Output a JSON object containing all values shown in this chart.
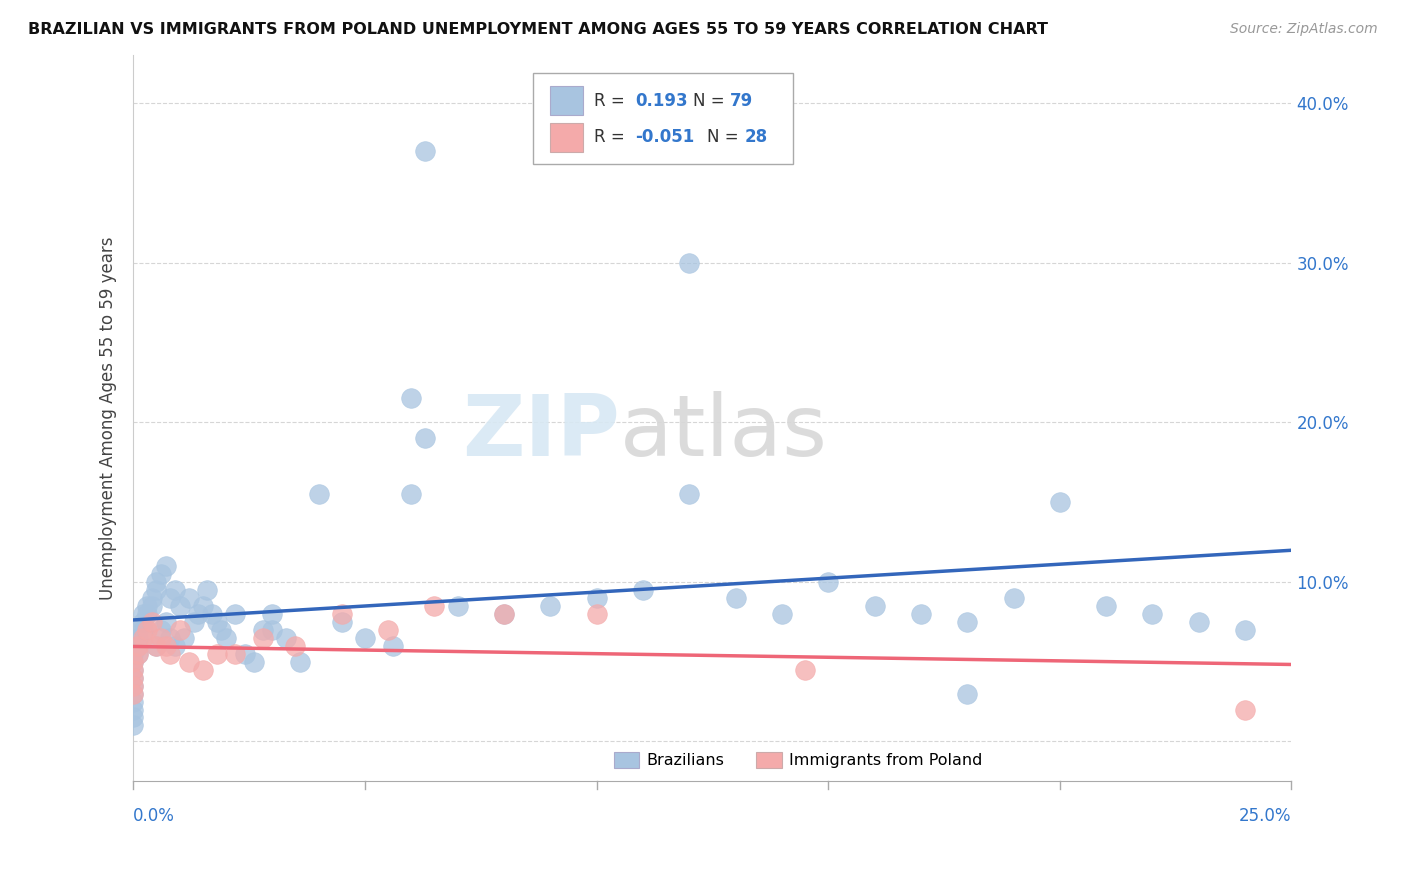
{
  "title": "BRAZILIAN VS IMMIGRANTS FROM POLAND UNEMPLOYMENT AMONG AGES 55 TO 59 YEARS CORRELATION CHART",
  "source": "Source: ZipAtlas.com",
  "ylabel": "Unemployment Among Ages 55 to 59 years",
  "xlim": [
    0.0,
    0.25
  ],
  "ylim": [
    -0.025,
    0.43
  ],
  "brazil_color": "#A8C4E0",
  "poland_color": "#F4AAAA",
  "brazil_line_color": "#3366BB",
  "poland_line_color": "#EE6677",
  "brazil_R": 0.193,
  "brazil_N": 79,
  "poland_R": -0.051,
  "poland_N": 28,
  "brazil_x": [
    0.0,
    0.0,
    0.0,
    0.0,
    0.0,
    0.0,
    0.0,
    0.0,
    0.0,
    0.0,
    0.001,
    0.001,
    0.001,
    0.001,
    0.002,
    0.002,
    0.002,
    0.003,
    0.003,
    0.004,
    0.004,
    0.005,
    0.005,
    0.005,
    0.006,
    0.006,
    0.007,
    0.007,
    0.008,
    0.008,
    0.009,
    0.009,
    0.01,
    0.011,
    0.012,
    0.013,
    0.014,
    0.015,
    0.016,
    0.017,
    0.018,
    0.019,
    0.02,
    0.022,
    0.024,
    0.026,
    0.028,
    0.03,
    0.033,
    0.036,
    0.04,
    0.045,
    0.05,
    0.056,
    0.063,
    0.063,
    0.07,
    0.08,
    0.09,
    0.1,
    0.11,
    0.12,
    0.13,
    0.14,
    0.15,
    0.16,
    0.17,
    0.18,
    0.19,
    0.2,
    0.21,
    0.22,
    0.23,
    0.24,
    0.12,
    0.06,
    0.03,
    0.06,
    0.18
  ],
  "brazil_y": [
    0.055,
    0.05,
    0.045,
    0.04,
    0.035,
    0.03,
    0.025,
    0.02,
    0.015,
    0.01,
    0.07,
    0.065,
    0.06,
    0.055,
    0.08,
    0.075,
    0.07,
    0.085,
    0.08,
    0.09,
    0.085,
    0.1,
    0.095,
    0.06,
    0.105,
    0.07,
    0.11,
    0.075,
    0.09,
    0.065,
    0.095,
    0.06,
    0.085,
    0.065,
    0.09,
    0.075,
    0.08,
    0.085,
    0.095,
    0.08,
    0.075,
    0.07,
    0.065,
    0.08,
    0.055,
    0.05,
    0.07,
    0.07,
    0.065,
    0.05,
    0.155,
    0.075,
    0.065,
    0.06,
    0.37,
    0.19,
    0.085,
    0.08,
    0.085,
    0.09,
    0.095,
    0.3,
    0.09,
    0.08,
    0.1,
    0.085,
    0.08,
    0.075,
    0.09,
    0.15,
    0.085,
    0.08,
    0.075,
    0.07,
    0.155,
    0.215,
    0.08,
    0.155,
    0.03
  ],
  "poland_x": [
    0.0,
    0.0,
    0.0,
    0.0,
    0.0,
    0.001,
    0.001,
    0.002,
    0.003,
    0.004,
    0.005,
    0.006,
    0.007,
    0.008,
    0.01,
    0.012,
    0.015,
    0.018,
    0.022,
    0.028,
    0.035,
    0.045,
    0.055,
    0.065,
    0.08,
    0.1,
    0.145,
    0.24
  ],
  "poland_y": [
    0.05,
    0.045,
    0.04,
    0.035,
    0.03,
    0.06,
    0.055,
    0.065,
    0.07,
    0.075,
    0.06,
    0.065,
    0.06,
    0.055,
    0.07,
    0.05,
    0.045,
    0.055,
    0.055,
    0.065,
    0.06,
    0.08,
    0.07,
    0.085,
    0.08,
    0.08,
    0.045,
    0.02
  ]
}
